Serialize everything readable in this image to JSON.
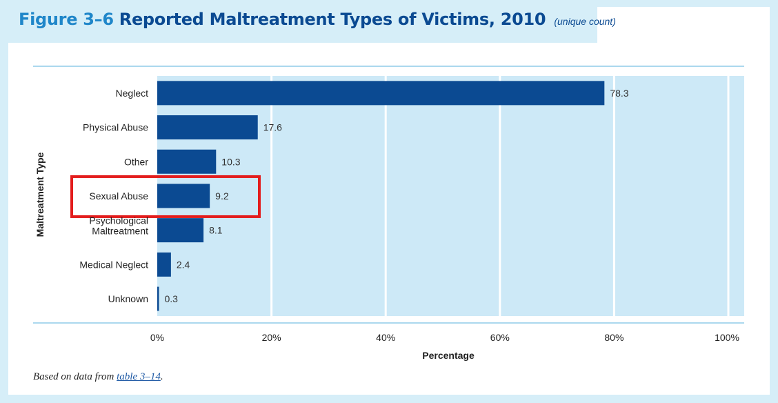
{
  "title": {
    "figure_number": "Figure 3–6",
    "text": "Reported Maltreatment Types of Victims, 2010",
    "subtitle": "(unique count)"
  },
  "source": {
    "prefix": "Based on data from ",
    "link_text": "table 3–14",
    "suffix": "."
  },
  "highlight": {
    "category": "Sexual Abuse",
    "color": "#e31c1c"
  },
  "colors": {
    "bar": "#0b4a92",
    "plot_background": "#cde9f7",
    "axis_line": "#8fcbe8",
    "title": "#0b4a92",
    "figure_number": "#1f86c9"
  },
  "chart_data": {
    "type": "bar",
    "orientation": "horizontal",
    "categories": [
      "Neglect",
      "Physical Abuse",
      "Other",
      "Sexual Abuse",
      "Psychological Maltreatment",
      "Medical Neglect",
      "Unknown"
    ],
    "values": [
      78.3,
      17.6,
      10.3,
      9.2,
      8.1,
      2.4,
      0.3
    ],
    "data_labels": [
      "78.3",
      "17.6",
      "10.3",
      "9.2",
      "8.1",
      "2.4",
      "0.3"
    ],
    "xlabel": "Percentage",
    "ylabel": "Maltreatment Type",
    "xlim": [
      0,
      100
    ],
    "xticks": [
      0,
      20,
      40,
      60,
      80,
      100
    ],
    "xtick_labels": [
      "0%",
      "20%",
      "40%",
      "60%",
      "80%",
      "100%"
    ],
    "grid": true
  }
}
